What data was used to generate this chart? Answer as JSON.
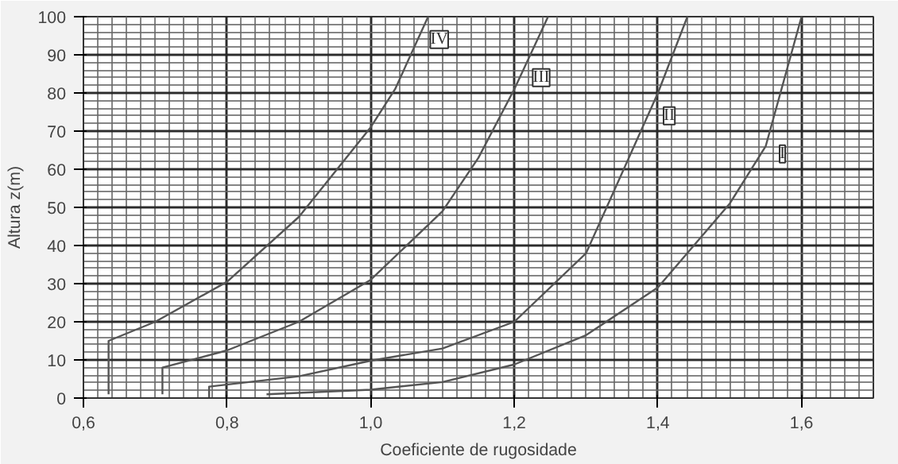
{
  "chart_data": {
    "type": "line",
    "xlabel": "Coeficiente de rugosidade",
    "ylabel": "Altura z(m)",
    "xlim": [
      0.6,
      1.7
    ],
    "ylim": [
      0,
      100
    ],
    "xticks": [
      {
        "value": 0.6,
        "label": "0,6"
      },
      {
        "value": 0.8,
        "label": "0,8"
      },
      {
        "value": 1.0,
        "label": "1,0"
      },
      {
        "value": 1.2,
        "label": "1,2"
      },
      {
        "value": 1.4,
        "label": "1,4"
      },
      {
        "value": 1.6,
        "label": "1,6"
      }
    ],
    "yticks": [
      0,
      10,
      20,
      30,
      40,
      50,
      60,
      70,
      80,
      90,
      100
    ],
    "grid": true,
    "marker": "none",
    "line_style": "solid",
    "series": [
      {
        "name": "IV",
        "color": "#555555",
        "x": [
          0.635,
          0.635,
          0.7,
          0.8,
          0.9,
          1.0,
          1.034,
          1.08
        ],
        "values": [
          1,
          15,
          20,
          30.5,
          47.5,
          71,
          81,
          100
        ]
      },
      {
        "name": "III",
        "color": "#555555",
        "x": [
          0.71,
          0.71,
          0.8,
          0.9,
          1.0,
          1.1,
          1.15,
          1.2,
          1.247
        ],
        "values": [
          1,
          8,
          12.5,
          20,
          31,
          49,
          63,
          81,
          100
        ]
      },
      {
        "name": "II",
        "color": "#555555",
        "x": [
          0.775,
          0.775,
          0.9,
          1.0,
          1.1,
          1.2,
          1.3,
          1.4,
          1.441
        ],
        "values": [
          0,
          3,
          5.7,
          9.8,
          13,
          20,
          38,
          80,
          100
        ]
      },
      {
        "name": "I",
        "color": "#555555",
        "x": [
          0.855,
          1.0,
          1.1,
          1.2,
          1.3,
          1.4,
          1.5,
          1.55,
          1.6
        ],
        "values": [
          1,
          2.2,
          4.2,
          8.8,
          16.5,
          29,
          51,
          66,
          100
        ]
      }
    ]
  }
}
